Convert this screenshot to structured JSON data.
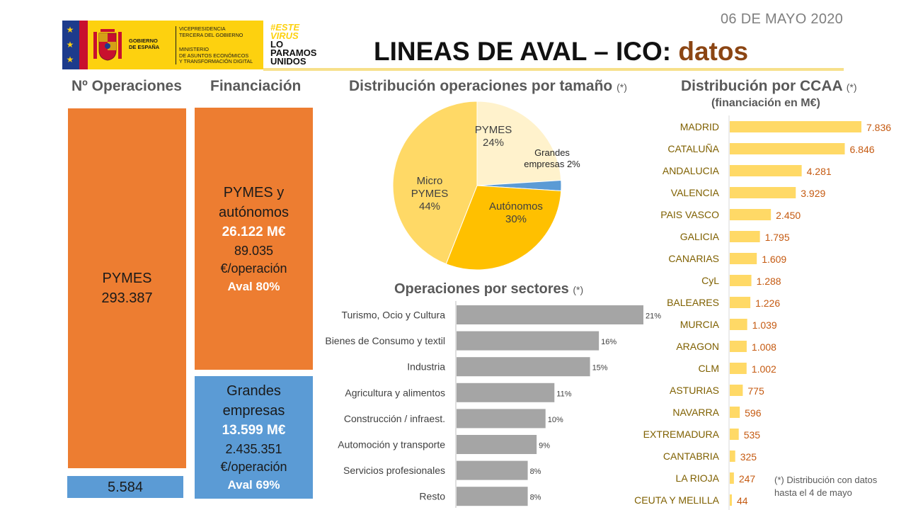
{
  "date": "06 DE MAYO 2020",
  "logo": {
    "gobierno": [
      "GOBIERNO",
      "DE ESPAÑA"
    ],
    "vicepresidencia": [
      "VICEPRESIDENCIA",
      "TERCERA DEL GOBIERNO"
    ],
    "ministerio": [
      "MINISTERIO",
      "DE ASUNTOS ECONÓMICOS",
      "Y TRANSFORMACIÓN DIGITAL"
    ],
    "colors": {
      "yellow": "#fdd10f",
      "eu_blue": "#1d3b8c",
      "red": "#c8102e"
    }
  },
  "campaign": [
    "#ESTE",
    "VIRUS",
    "LO",
    "PARAMOS",
    "UNIDOS"
  ],
  "title": {
    "main": "LINEAS DE AVAL – ICO:",
    "accent": "datos"
  },
  "headers": {
    "operaciones": "Nº Operaciones",
    "financiacion": "Financiación",
    "tamano": "Distribución operaciones por  tamaño",
    "tamano_note": "(*)",
    "ccaa": "Distribución por CCAA",
    "ccaa_note": "(*)",
    "ccaa_sub": "(financiación en M€)",
    "sectores": "Operaciones por sectores",
    "sectores_note": "(*)"
  },
  "operaciones": {
    "pymes_label": "PYMES",
    "pymes_value": "293.387",
    "grandes_value": "5.584"
  },
  "financiacion": {
    "pymes": {
      "label1": "PYMES y",
      "label2": "autónomos",
      "amount": "26.122 M€",
      "per_op": "89.035",
      "per_op_unit": "€/operación",
      "aval": "Aval 80%"
    },
    "grandes": {
      "label1": "Grandes",
      "label2": "empresas",
      "amount": "13.599 M€",
      "per_op": "2.435.351",
      "per_op_unit": "€/operación",
      "aval": "Aval 69%"
    }
  },
  "colors": {
    "orange": "#ed7d31",
    "blue": "#5b9bd5",
    "gray_bar": "#a5a5a5",
    "ccaa_bar": "#ffd966",
    "ccaa_label": "#7f6000",
    "ccaa_value": "#c55a11"
  },
  "chart_data": [
    {
      "type": "pie",
      "title": "Distribución operaciones por  tamaño",
      "slices": [
        {
          "label": "PYMES",
          "value": 24,
          "display": "24%",
          "color": "#fff2cc"
        },
        {
          "label": "Grandes empresas",
          "value": 2,
          "display": "2%",
          "color": "#5b9bd5"
        },
        {
          "label": "Autónomos",
          "value": 30,
          "display": "30%",
          "color": "#ffc000"
        },
        {
          "label": "Micro PYMES",
          "value": 44,
          "display": "44%",
          "color": "#ffd966"
        }
      ]
    },
    {
      "type": "bar",
      "orientation": "horizontal",
      "title": "Operaciones por sectores",
      "categories": [
        "Turismo, Ocio y Cultura",
        "Bienes de Consumo y textil",
        "Industria",
        "Agricultura y alimentos",
        "Construcción / infraest.",
        "Automoción y transporte",
        "Servicios profesionales",
        "Resto"
      ],
      "values": [
        21,
        16,
        15,
        11,
        10,
        9,
        8,
        8
      ],
      "labels": [
        "21%",
        "16%",
        "15%",
        "11%",
        "10%",
        "9%",
        "8%",
        "8%"
      ],
      "xlim": [
        0,
        21
      ]
    },
    {
      "type": "bar",
      "orientation": "horizontal",
      "title": "Distribución por CCAA",
      "unit": "M€",
      "categories": [
        "MADRID",
        "CATALUÑA",
        "ANDALUCIA",
        "VALENCIA",
        "PAIS VASCO",
        "GALICIA",
        "CANARIAS",
        "CyL",
        "BALEARES",
        "MURCIA",
        "ARAGON",
        "CLM",
        "ASTURIAS",
        "NAVARRA",
        "EXTREMADURA",
        "CANTABRIA",
        "LA RIOJA",
        "CEUTA Y MELILLA"
      ],
      "values": [
        7836,
        6846,
        4281,
        3929,
        2450,
        1795,
        1609,
        1288,
        1226,
        1039,
        1008,
        1002,
        775,
        596,
        535,
        325,
        247,
        44
      ],
      "labels": [
        "7.836",
        "6.846",
        "4.281",
        "3.929",
        "2.450",
        "1.795",
        "1.609",
        "1.288",
        "1.226",
        "1.039",
        "1.008",
        "1.002",
        "775",
        "596",
        "535",
        "325",
        "247",
        "44"
      ],
      "xlim": [
        0,
        7836
      ]
    }
  ],
  "footnote": [
    "(*) Distribución con datos",
    "hasta el 4 de mayo"
  ]
}
